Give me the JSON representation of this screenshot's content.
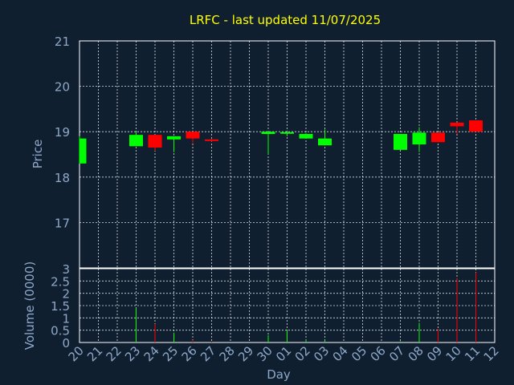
{
  "chart_data": {
    "type": "candlestick",
    "title": "LRFC - last updated 11/07/2025",
    "xlabel": "Day",
    "colors": {
      "background": "#0f1f30",
      "up": "#00ff00",
      "down": "#ff0000",
      "grid": "#ffffff",
      "text": "#8ea8c8",
      "title": "#ffff00"
    },
    "x_ticks": [
      "20",
      "21",
      "22",
      "23",
      "24",
      "25",
      "26",
      "27",
      "28",
      "29",
      "30",
      "01",
      "02",
      "03",
      "04",
      "05",
      "06",
      "07",
      "08",
      "09",
      "10",
      "11",
      "12"
    ],
    "price_panel": {
      "ylabel": "Price",
      "ylim": [
        16,
        21
      ],
      "y_ticks": [
        "17",
        "18",
        "19",
        "20",
        "21"
      ]
    },
    "volume_panel": {
      "ylabel": "Volume (0000)",
      "ylim": [
        0,
        3
      ],
      "y_ticks": [
        "0",
        "0.5",
        "1",
        "1.5",
        "2",
        "2.5",
        "3"
      ]
    },
    "candles": [
      {
        "x": 0,
        "open": 18.3,
        "close": 18.85,
        "high": 18.9,
        "low": 18.3,
        "volume": 0.0
      },
      {
        "x": 3,
        "open": 18.68,
        "close": 18.93,
        "high": 19.0,
        "low": 18.68,
        "volume": 1.4
      },
      {
        "x": 4,
        "open": 18.93,
        "close": 18.65,
        "high": 18.93,
        "low": 18.58,
        "volume": 0.75
      },
      {
        "x": 5,
        "open": 18.83,
        "close": 18.9,
        "high": 18.9,
        "low": 18.55,
        "volume": 0.4
      },
      {
        "x": 6,
        "open": 19.0,
        "close": 18.85,
        "high": 19.0,
        "low": 18.75,
        "volume": 0.1
      },
      {
        "x": 7,
        "open": 18.83,
        "close": 18.8,
        "high": 18.85,
        "low": 18.78,
        "volume": 0.05
      },
      {
        "x": 10,
        "open": 18.95,
        "close": 19.0,
        "high": 19.0,
        "low": 18.5,
        "volume": 0.3
      },
      {
        "x": 11,
        "open": 18.97,
        "close": 18.99,
        "high": 19.0,
        "low": 18.9,
        "volume": 0.5
      },
      {
        "x": 12,
        "open": 18.85,
        "close": 18.95,
        "high": 18.97,
        "low": 18.85,
        "volume": 0.1
      },
      {
        "x": 13,
        "open": 18.7,
        "close": 18.85,
        "high": 19.05,
        "low": 18.7,
        "volume": 0.08
      },
      {
        "x": 17,
        "open": 18.6,
        "close": 18.95,
        "high": 18.95,
        "low": 18.6,
        "volume": 0.05
      },
      {
        "x": 18,
        "open": 18.72,
        "close": 18.98,
        "high": 19.1,
        "low": 18.55,
        "volume": 0.8
      },
      {
        "x": 19,
        "open": 18.98,
        "close": 18.77,
        "high": 18.98,
        "low": 18.77,
        "volume": 0.55
      },
      {
        "x": 20,
        "open": 19.2,
        "close": 19.12,
        "high": 19.2,
        "low": 18.95,
        "volume": 2.6
      },
      {
        "x": 21,
        "open": 19.25,
        "close": 19.0,
        "high": 19.25,
        "low": 19.0,
        "volume": 2.85
      }
    ]
  }
}
